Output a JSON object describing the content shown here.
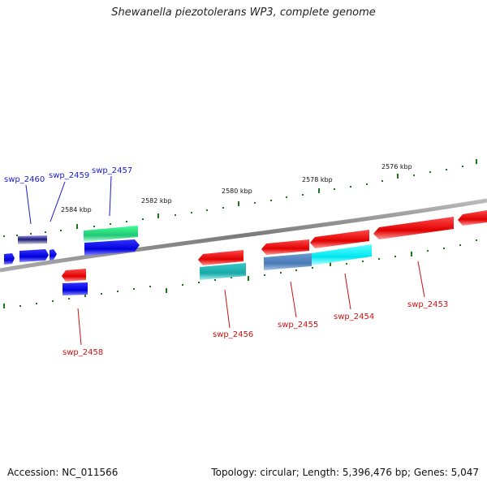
{
  "title": "Shewanella piezotolerans WP3, complete genome",
  "footer": {
    "accession": "Accession: NC_011566",
    "stats": "Topology: circular; Length: 5,396,476 bp; Genes: 5,047"
  },
  "scale_labels": [
    "2576 kbp",
    "2578 kbp",
    "2580 kbp",
    "2582 kbp",
    "2584 kbp"
  ],
  "genes_forward": [
    "swp_2460",
    "swp_2459",
    "swp_2457"
  ],
  "genes_reverse": [
    "swp_2458",
    "swp_2456",
    "swp_2455",
    "swp_2454",
    "swp_2453"
  ],
  "colors": {
    "backbone": "#888888",
    "forward_label": "#1a1ad6",
    "reverse_label": "#cc1111",
    "tick_green": "#1a7a1a"
  }
}
